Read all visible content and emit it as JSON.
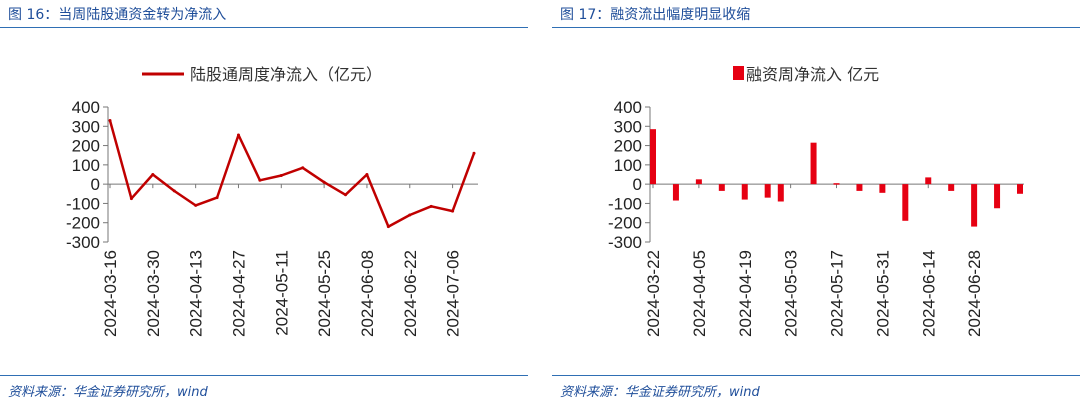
{
  "left": {
    "fig_label": "图 16：当周陆股通资金转为净流入",
    "source": "资料来源：华金证券研究所，wind",
    "chart_data": {
      "type": "line",
      "title": "",
      "legend": "陆股通周度净流入（亿元）",
      "legend_position": "top-center",
      "ylim": [
        -300,
        400
      ],
      "yticks": [
        400,
        300,
        200,
        100,
        0,
        -100,
        -200,
        -300
      ],
      "xtick_labels": [
        "2024-03-16",
        "2024-03-30",
        "2024-04-13",
        "2024-04-27",
        "2024-05-11",
        "2024-05-25",
        "2024-06-08",
        "2024-06-22",
        "2024-07-06"
      ],
      "series": [
        {
          "name": "陆股通周度净流入（亿元）",
          "color": "#c00000",
          "x": [
            "2024-03-16",
            "2024-03-23",
            "2024-03-30",
            "2024-04-06",
            "2024-04-13",
            "2024-04-20",
            "2024-04-27",
            "2024-05-04",
            "2024-05-11",
            "2024-05-18",
            "2024-05-25",
            "2024-06-01",
            "2024-06-08",
            "2024-06-15",
            "2024-06-22",
            "2024-06-29",
            "2024-07-06",
            "2024-07-13"
          ],
          "values": [
            330,
            -75,
            50,
            -35,
            -110,
            -70,
            255,
            20,
            45,
            85,
            10,
            -55,
            50,
            -220,
            -160,
            -115,
            -140,
            160
          ]
        }
      ]
    }
  },
  "right": {
    "fig_label": "图 17：融资流出幅度明显收缩",
    "source": "资料来源：华金证券研究所，wind",
    "chart_data": {
      "type": "bar",
      "title": "",
      "legend": "融资周净流入 亿元",
      "legend_position": "top-center",
      "ylim": [
        -300,
        400
      ],
      "yticks": [
        400,
        300,
        200,
        100,
        0,
        -100,
        -200,
        -300
      ],
      "xtick_labels": [
        "2024-03-22",
        "2024-04-05",
        "2024-04-19",
        "2024-05-03",
        "2024-05-17",
        "2024-05-31",
        "2024-06-14",
        "2024-06-28"
      ],
      "series": [
        {
          "name": "融资周净流入 亿元",
          "color": "#e60012",
          "x": [
            "2024-03-22",
            "2024-03-29",
            "2024-04-05",
            "2024-04-12",
            "2024-04-19",
            "2024-04-26",
            "2024-04-30",
            "2024-05-10",
            "2024-05-17",
            "2024-05-24",
            "2024-05-31",
            "2024-06-07",
            "2024-06-14",
            "2024-06-21",
            "2024-06-28",
            "2024-07-05",
            "2024-07-12"
          ],
          "values": [
            285,
            -85,
            25,
            -35,
            -80,
            -70,
            -90,
            215,
            5,
            -35,
            -45,
            -190,
            35,
            -35,
            -220,
            -125,
            -50
          ]
        }
      ]
    }
  }
}
